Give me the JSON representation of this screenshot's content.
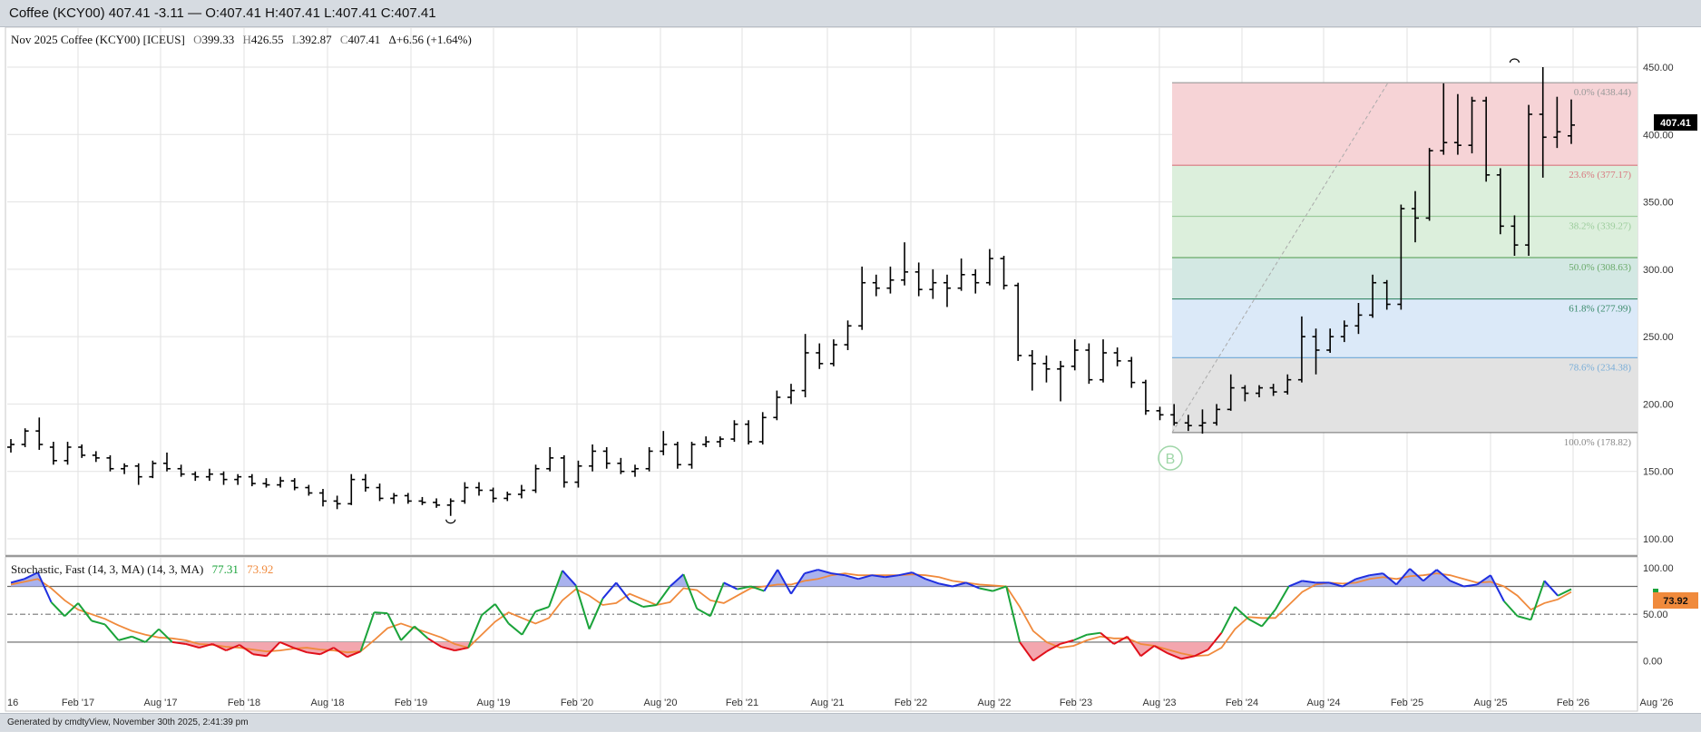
{
  "window_title": "Coffee (KCY00) 407.41 -3.11 — O:407.41 H:407.41 L:407.41 C:407.41",
  "footer_text": "Generated by cmdtyView, November 30th 2025, 2:41:39 pm",
  "main_header": {
    "symbol": "Nov 2025 Coffee (KCY00) [ICEUS]",
    "o_label": "O",
    "o_value": "399.33",
    "h_label": "H",
    "h_value": "426.55",
    "l_label": "L",
    "l_value": "392.87",
    "c_label": "C",
    "c_value": "407.41",
    "change": "Δ+6.56 (+1.64%)"
  },
  "last_price_badge": "407.41",
  "stoch_header": {
    "name": "Stochastic, Fast (14, 3, MA)  (14, 3, MA)",
    "k_value": "77.31",
    "d_value": "73.92"
  },
  "stoch_badge": "73.92",
  "colors": {
    "price_bar": "#000000",
    "stoch_k_up": "#1aa33a",
    "stoch_k_over": "#1f2fe0",
    "stoch_k_under": "#e0101a",
    "stoch_d": "#f08a3c",
    "fill_over": "#a9b2ee",
    "fill_under": "#f3a6ae",
    "badge_dark": "#000000",
    "badge_orange": "#f08a3c"
  },
  "chart_data": [
    {
      "type": "ohlc",
      "title": "Nov 2025 Coffee (KCY00) [ICEUS]",
      "x_labels": [
        "16",
        "Feb '17",
        "Aug '17",
        "Feb '18",
        "Aug '18",
        "Feb '19",
        "Aug '19",
        "Feb '20",
        "Aug '20",
        "Feb '21",
        "Aug '21",
        "Feb '22",
        "Aug '22",
        "Feb '23",
        "Aug '23",
        "Feb '24",
        "Aug '24",
        "Feb '25",
        "Aug '25",
        "Feb '26",
        "Aug '26"
      ],
      "y_ticks": [
        "450.00",
        "400.00",
        "350.00",
        "300.00",
        "250.00",
        "200.00",
        "150.00",
        "100.00"
      ],
      "ylim": [
        90,
        460
      ],
      "last_price": 407.41,
      "fibonacci": [
        {
          "label": "0.0% (438.44)",
          "value": 438.44,
          "color": "#999999"
        },
        {
          "label": "23.6% (377.17)",
          "value": 377.17,
          "color": "#d9777f"
        },
        {
          "label": "38.2% (339.27)",
          "value": 339.27,
          "color": "#9ccc9c"
        },
        {
          "label": "50.0% (308.63)",
          "value": 308.63,
          "color": "#6aaa6a"
        },
        {
          "label": "61.8% (277.99)",
          "value": 277.99,
          "color": "#3a8a6a"
        },
        {
          "label": "78.6% (234.38)",
          "value": 234.38,
          "color": "#7aaed8"
        },
        {
          "label": "100.0% (178.82)",
          "value": 178.82,
          "color": "#888888"
        }
      ],
      "fib_zones": [
        {
          "from": 438.44,
          "to": 377.17,
          "color": "#f6d3d6"
        },
        {
          "from": 377.17,
          "to": 308.63,
          "color": "#dcefdc"
        },
        {
          "from": 308.63,
          "to": 277.99,
          "color": "#d3e8e3"
        },
        {
          "from": 277.99,
          "to": 234.38,
          "color": "#dbe9f8"
        },
        {
          "from": 234.38,
          "to": 178.82,
          "color": "#e2e2e2"
        }
      ],
      "fib_marker": "B",
      "bars": [
        {
          "o": 168,
          "h": 174,
          "l": 164,
          "c": 170
        },
        {
          "o": 170,
          "h": 182,
          "l": 168,
          "c": 180
        },
        {
          "o": 180,
          "h": 190,
          "l": 166,
          "c": 170
        },
        {
          "o": 168,
          "h": 172,
          "l": 155,
          "c": 158
        },
        {
          "o": 158,
          "h": 172,
          "l": 155,
          "c": 168
        },
        {
          "o": 168,
          "h": 170,
          "l": 160,
          "c": 162
        },
        {
          "o": 162,
          "h": 165,
          "l": 157,
          "c": 160
        },
        {
          "o": 160,
          "h": 162,
          "l": 150,
          "c": 152
        },
        {
          "o": 152,
          "h": 156,
          "l": 148,
          "c": 154
        },
        {
          "o": 154,
          "h": 156,
          "l": 140,
          "c": 146
        },
        {
          "o": 146,
          "h": 158,
          "l": 145,
          "c": 156
        },
        {
          "o": 156,
          "h": 164,
          "l": 150,
          "c": 152
        },
        {
          "o": 152,
          "h": 155,
          "l": 146,
          "c": 148
        },
        {
          "o": 148,
          "h": 150,
          "l": 143,
          "c": 146
        },
        {
          "o": 146,
          "h": 152,
          "l": 143,
          "c": 148
        },
        {
          "o": 148,
          "h": 150,
          "l": 140,
          "c": 144
        },
        {
          "o": 144,
          "h": 148,
          "l": 140,
          "c": 146
        },
        {
          "o": 146,
          "h": 148,
          "l": 139,
          "c": 141
        },
        {
          "o": 141,
          "h": 145,
          "l": 138,
          "c": 140
        },
        {
          "o": 140,
          "h": 146,
          "l": 138,
          "c": 143
        },
        {
          "o": 143,
          "h": 145,
          "l": 136,
          "c": 138
        },
        {
          "o": 138,
          "h": 140,
          "l": 132,
          "c": 134
        },
        {
          "o": 134,
          "h": 137,
          "l": 124,
          "c": 128
        },
        {
          "o": 128,
          "h": 132,
          "l": 122,
          "c": 126
        },
        {
          "o": 126,
          "h": 148,
          "l": 125,
          "c": 144
        },
        {
          "o": 144,
          "h": 148,
          "l": 135,
          "c": 138
        },
        {
          "o": 138,
          "h": 141,
          "l": 128,
          "c": 130
        },
        {
          "o": 130,
          "h": 134,
          "l": 126,
          "c": 132
        },
        {
          "o": 132,
          "h": 134,
          "l": 126,
          "c": 128
        },
        {
          "o": 128,
          "h": 131,
          "l": 125,
          "c": 127
        },
        {
          "o": 127,
          "h": 130,
          "l": 123,
          "c": 125
        },
        {
          "o": 125,
          "h": 130,
          "l": 117,
          "c": 128
        },
        {
          "o": 128,
          "h": 142,
          "l": 126,
          "c": 138
        },
        {
          "o": 138,
          "h": 142,
          "l": 132,
          "c": 136
        },
        {
          "o": 136,
          "h": 138,
          "l": 127,
          "c": 130
        },
        {
          "o": 130,
          "h": 135,
          "l": 128,
          "c": 133
        },
        {
          "o": 133,
          "h": 140,
          "l": 130,
          "c": 136
        },
        {
          "o": 136,
          "h": 155,
          "l": 134,
          "c": 152
        },
        {
          "o": 152,
          "h": 168,
          "l": 150,
          "c": 160
        },
        {
          "o": 160,
          "h": 162,
          "l": 138,
          "c": 142
        },
        {
          "o": 142,
          "h": 158,
          "l": 138,
          "c": 154
        },
        {
          "o": 154,
          "h": 170,
          "l": 150,
          "c": 165
        },
        {
          "o": 165,
          "h": 168,
          "l": 152,
          "c": 156
        },
        {
          "o": 156,
          "h": 160,
          "l": 148,
          "c": 150
        },
        {
          "o": 150,
          "h": 155,
          "l": 146,
          "c": 152
        },
        {
          "o": 152,
          "h": 168,
          "l": 150,
          "c": 165
        },
        {
          "o": 165,
          "h": 180,
          "l": 162,
          "c": 170
        },
        {
          "o": 170,
          "h": 172,
          "l": 152,
          "c": 155
        },
        {
          "o": 155,
          "h": 172,
          "l": 152,
          "c": 170
        },
        {
          "o": 170,
          "h": 176,
          "l": 168,
          "c": 172
        },
        {
          "o": 172,
          "h": 176,
          "l": 168,
          "c": 174
        },
        {
          "o": 174,
          "h": 188,
          "l": 172,
          "c": 185
        },
        {
          "o": 185,
          "h": 188,
          "l": 170,
          "c": 172
        },
        {
          "o": 172,
          "h": 194,
          "l": 170,
          "c": 190
        },
        {
          "o": 190,
          "h": 210,
          "l": 188,
          "c": 205
        },
        {
          "o": 205,
          "h": 215,
          "l": 200,
          "c": 210
        },
        {
          "o": 210,
          "h": 252,
          "l": 205,
          "c": 238
        },
        {
          "o": 238,
          "h": 245,
          "l": 226,
          "c": 230
        },
        {
          "o": 230,
          "h": 248,
          "l": 228,
          "c": 244
        },
        {
          "o": 244,
          "h": 262,
          "l": 240,
          "c": 258
        },
        {
          "o": 258,
          "h": 302,
          "l": 255,
          "c": 290
        },
        {
          "o": 290,
          "h": 296,
          "l": 280,
          "c": 286
        },
        {
          "o": 286,
          "h": 302,
          "l": 282,
          "c": 292
        },
        {
          "o": 292,
          "h": 320,
          "l": 288,
          "c": 298
        },
        {
          "o": 298,
          "h": 305,
          "l": 280,
          "c": 285
        },
        {
          "o": 285,
          "h": 300,
          "l": 278,
          "c": 290
        },
        {
          "o": 290,
          "h": 296,
          "l": 272,
          "c": 286
        },
        {
          "o": 286,
          "h": 308,
          "l": 284,
          "c": 296
        },
        {
          "o": 296,
          "h": 300,
          "l": 282,
          "c": 290
        },
        {
          "o": 290,
          "h": 315,
          "l": 288,
          "c": 308
        },
        {
          "o": 308,
          "h": 310,
          "l": 285,
          "c": 288
        },
        {
          "o": 288,
          "h": 290,
          "l": 232,
          "c": 236
        },
        {
          "o": 236,
          "h": 240,
          "l": 210,
          "c": 230
        },
        {
          "o": 230,
          "h": 236,
          "l": 216,
          "c": 226
        },
        {
          "o": 226,
          "h": 232,
          "l": 202,
          "c": 228
        },
        {
          "o": 228,
          "h": 248,
          "l": 225,
          "c": 240
        },
        {
          "o": 240,
          "h": 245,
          "l": 215,
          "c": 218
        },
        {
          "o": 218,
          "h": 248,
          "l": 216,
          "c": 238
        },
        {
          "o": 238,
          "h": 242,
          "l": 228,
          "c": 232
        },
        {
          "o": 232,
          "h": 235,
          "l": 212,
          "c": 216
        },
        {
          "o": 216,
          "h": 218,
          "l": 192,
          "c": 195
        },
        {
          "o": 195,
          "h": 198,
          "l": 188,
          "c": 192
        },
        {
          "o": 192,
          "h": 200,
          "l": 184,
          "c": 186
        },
        {
          "o": 186,
          "h": 192,
          "l": 180,
          "c": 184
        },
        {
          "o": 184,
          "h": 196,
          "l": 178,
          "c": 186
        },
        {
          "o": 186,
          "h": 200,
          "l": 184,
          "c": 196
        },
        {
          "o": 196,
          "h": 222,
          "l": 195,
          "c": 212
        },
        {
          "o": 212,
          "h": 214,
          "l": 202,
          "c": 208
        },
        {
          "o": 208,
          "h": 214,
          "l": 205,
          "c": 212
        },
        {
          "o": 212,
          "h": 215,
          "l": 206,
          "c": 209
        },
        {
          "o": 209,
          "h": 222,
          "l": 207,
          "c": 218
        },
        {
          "o": 218,
          "h": 265,
          "l": 216,
          "c": 250
        },
        {
          "o": 250,
          "h": 256,
          "l": 222,
          "c": 240
        },
        {
          "o": 240,
          "h": 256,
          "l": 238,
          "c": 250
        },
        {
          "o": 250,
          "h": 262,
          "l": 246,
          "c": 258
        },
        {
          "o": 258,
          "h": 275,
          "l": 252,
          "c": 266
        },
        {
          "o": 266,
          "h": 296,
          "l": 264,
          "c": 290
        },
        {
          "o": 290,
          "h": 292,
          "l": 270,
          "c": 274
        },
        {
          "o": 274,
          "h": 348,
          "l": 270,
          "c": 345
        },
        {
          "o": 345,
          "h": 358,
          "l": 320,
          "c": 338
        },
        {
          "o": 338,
          "h": 390,
          "l": 336,
          "c": 388
        },
        {
          "o": 388,
          "h": 438,
          "l": 385,
          "c": 394
        },
        {
          "o": 394,
          "h": 430,
          "l": 385,
          "c": 392
        },
        {
          "o": 392,
          "h": 428,
          "l": 386,
          "c": 425
        },
        {
          "o": 425,
          "h": 428,
          "l": 365,
          "c": 370
        },
        {
          "o": 370,
          "h": 375,
          "l": 326,
          "c": 332
        },
        {
          "o": 332,
          "h": 340,
          "l": 310,
          "c": 318
        },
        {
          "o": 318,
          "h": 422,
          "l": 310,
          "c": 415
        },
        {
          "o": 415,
          "h": 450,
          "l": 368,
          "c": 398
        },
        {
          "o": 398,
          "h": 428,
          "l": 390,
          "c": 402
        },
        {
          "o": 399,
          "h": 426,
          "l": 393,
          "c": 407
        }
      ]
    },
    {
      "type": "line",
      "title": "Stochastic, Fast (14, 3, MA)  (14, 3, MA)",
      "y_ticks": [
        "100.00",
        "50.00",
        "0.00"
      ],
      "ylim": [
        -5,
        105
      ],
      "levels": [
        80,
        50,
        20
      ],
      "series": [
        {
          "name": "77.31",
          "values": [
            84,
            88,
            95,
            63,
            48,
            62,
            43,
            39,
            22,
            26,
            20,
            34,
            20,
            18,
            14,
            18,
            11,
            17,
            7,
            5,
            20,
            14,
            9,
            7,
            14,
            4,
            10,
            52,
            51,
            22,
            37,
            24,
            15,
            11,
            14,
            49,
            61,
            40,
            28,
            53,
            58,
            97,
            81,
            34,
            67,
            84,
            65,
            58,
            60,
            80,
            93,
            56,
            48,
            84,
            77,
            80,
            75,
            98,
            72,
            94,
            98,
            94,
            92,
            88,
            92,
            90,
            92,
            95,
            88,
            83,
            80,
            84,
            78,
            75,
            80,
            20,
            0,
            10,
            18,
            22,
            28,
            30,
            18,
            26,
            5,
            16,
            8,
            2,
            5,
            12,
            30,
            58,
            45,
            37,
            55,
            80,
            86,
            84,
            84,
            80,
            88,
            92,
            94,
            82,
            99,
            86,
            98,
            86,
            80,
            82,
            92,
            64,
            48,
            44,
            86,
            70,
            77
          ]
        },
        {
          "name": "73.92",
          "values": [
            82,
            85,
            88,
            78,
            65,
            55,
            50,
            45,
            38,
            32,
            28,
            25,
            24,
            22,
            18,
            17,
            15,
            14,
            12,
            10,
            11,
            13,
            14,
            12,
            11,
            9,
            10,
            22,
            35,
            40,
            35,
            30,
            25,
            18,
            14,
            28,
            42,
            52,
            46,
            40,
            46,
            65,
            77,
            70,
            60,
            62,
            72,
            66,
            60,
            63,
            78,
            76,
            65,
            62,
            70,
            78,
            80,
            82,
            82,
            86,
            88,
            92,
            94,
            92,
            92,
            92,
            92,
            93,
            92,
            90,
            86,
            84,
            82,
            81,
            80,
            58,
            32,
            20,
            14,
            16,
            22,
            26,
            24,
            24,
            18,
            16,
            12,
            8,
            5,
            6,
            14,
            34,
            47,
            46,
            46,
            60,
            74,
            82,
            84,
            83,
            84,
            88,
            90,
            88,
            91,
            92,
            94,
            92,
            88,
            84,
            85,
            80,
            70,
            55,
            62,
            66,
            74
          ]
        }
      ]
    }
  ]
}
